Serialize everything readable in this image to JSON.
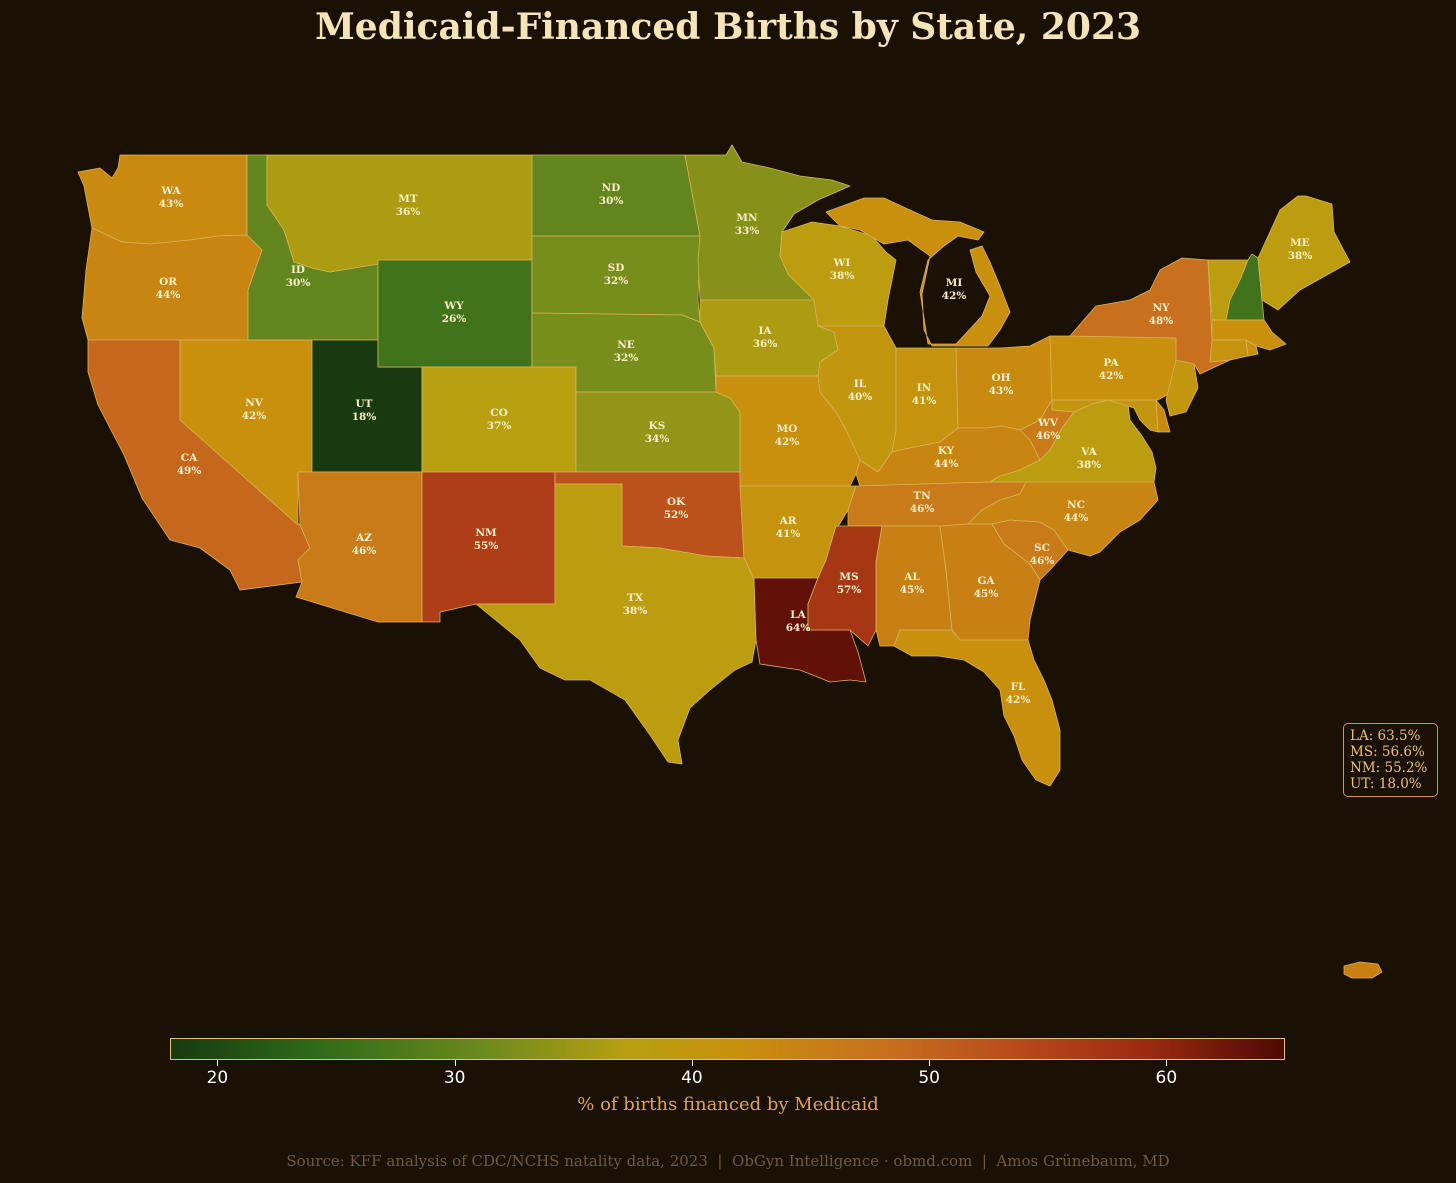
{
  "title": "Medicaid-Financed Births by State, 2023",
  "colors": {
    "background": "#1a1004",
    "title": "#f4e4b8",
    "border": "#d9b35a",
    "callout": "#e9c46a",
    "low": "#183a10",
    "mid": "#b8a010",
    "high": "#4e0805"
  },
  "chart_data": {
    "type": "choropleth",
    "title": "Medicaid-Financed Births by State, 2023",
    "states": [
      {
        "id": "WA",
        "value": 43,
        "label": "43%"
      },
      {
        "id": "OR",
        "value": 44,
        "label": "44%"
      },
      {
        "id": "CA",
        "value": 49,
        "label": "49%"
      },
      {
        "id": "ID",
        "value": 30,
        "label": "30%"
      },
      {
        "id": "NV",
        "value": 42,
        "label": "42%"
      },
      {
        "id": "UT",
        "value": 18.0,
        "label": "18%"
      },
      {
        "id": "AZ",
        "value": 46,
        "label": "46%"
      },
      {
        "id": "MT",
        "value": 36,
        "label": "36%"
      },
      {
        "id": "WY",
        "value": 26,
        "label": "26%"
      },
      {
        "id": "CO",
        "value": 37,
        "label": "37%"
      },
      {
        "id": "NM",
        "value": 55.2,
        "label": "55%"
      },
      {
        "id": "ND",
        "value": 30,
        "label": "30%"
      },
      {
        "id": "SD",
        "value": 32,
        "label": "32%"
      },
      {
        "id": "NE",
        "value": 32,
        "label": "32%"
      },
      {
        "id": "KS",
        "value": 34,
        "label": "34%"
      },
      {
        "id": "OK",
        "value": 52,
        "label": "52%"
      },
      {
        "id": "TX",
        "value": 38,
        "label": "38%"
      },
      {
        "id": "MN",
        "value": 33,
        "label": "33%"
      },
      {
        "id": "IA",
        "value": 36,
        "label": "36%"
      },
      {
        "id": "MO",
        "value": 42,
        "label": "42%"
      },
      {
        "id": "AR",
        "value": 41,
        "label": "41%"
      },
      {
        "id": "LA",
        "value": 63.5,
        "label": "64%"
      },
      {
        "id": "WI",
        "value": 38,
        "label": "38%"
      },
      {
        "id": "IL",
        "value": 40,
        "label": "40%"
      },
      {
        "id": "MI",
        "value": 42,
        "label": "42%"
      },
      {
        "id": "IN",
        "value": 41,
        "label": "41%"
      },
      {
        "id": "OH",
        "value": 43,
        "label": "43%"
      },
      {
        "id": "KY",
        "value": 44,
        "label": "44%"
      },
      {
        "id": "TN",
        "value": 46,
        "label": "46%"
      },
      {
        "id": "MS",
        "value": 56.6,
        "label": "57%"
      },
      {
        "id": "AL",
        "value": 45,
        "label": "45%"
      },
      {
        "id": "GA",
        "value": 45,
        "label": "45%"
      },
      {
        "id": "FL",
        "value": 42,
        "label": "42%"
      },
      {
        "id": "SC",
        "value": 46,
        "label": "46%"
      },
      {
        "id": "NC",
        "value": 44,
        "label": "44%"
      },
      {
        "id": "VA",
        "value": 38,
        "label": "38%"
      },
      {
        "id": "WV",
        "value": 46,
        "label": "46%"
      },
      {
        "id": "PA",
        "value": 42,
        "label": "42%"
      },
      {
        "id": "NY",
        "value": 48,
        "label": "48%"
      },
      {
        "id": "ME",
        "value": 38,
        "label": "38%"
      },
      {
        "id": "VT",
        "value": 38
      },
      {
        "id": "NH",
        "value": 26
      },
      {
        "id": "MA",
        "value": 42
      },
      {
        "id": "CT",
        "value": 41
      },
      {
        "id": "RI",
        "value": 42
      },
      {
        "id": "NJ",
        "value": 40
      },
      {
        "id": "DE",
        "value": 43
      },
      {
        "id": "MD",
        "value": 40
      },
      {
        "id": "PR",
        "value": 45
      }
    ],
    "colorbar": {
      "min": 18,
      "max": 65,
      "ticks": [
        20,
        30,
        40,
        50,
        60
      ],
      "label": "% of births financed by Medicaid"
    },
    "callout": [
      "LA: 63.5%",
      "MS: 56.6%",
      "NM: 55.2%",
      "UT: 18.0%"
    ]
  },
  "footer": {
    "source": "Source: KFF analysis of CDC/NCHS natality data, 2023  |  ObGyn Intelligence · obmd.com  |  Amos Grünebaum, MD"
  }
}
